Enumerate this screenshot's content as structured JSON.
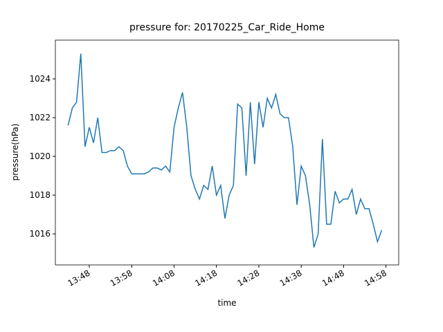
{
  "chart_data": {
    "type": "line",
    "title": "pressure for: 20170225_Car_Ride_Home",
    "x_label": "time",
    "y_label": "pressure(hPa)",
    "x": [
      "13:43",
      "13:44",
      "13:45",
      "13:46",
      "13:47",
      "13:48",
      "13:49",
      "13:50",
      "13:51",
      "13:52",
      "13:53",
      "13:54",
      "13:55",
      "13:56",
      "13:57",
      "13:58",
      "13:59",
      "14:00",
      "14:01",
      "14:02",
      "14:03",
      "14:04",
      "14:05",
      "14:06",
      "14:07",
      "14:08",
      "14:09",
      "14:10",
      "14:11",
      "14:12",
      "14:13",
      "14:14",
      "14:15",
      "14:16",
      "14:17",
      "14:18",
      "14:19",
      "14:20",
      "14:21",
      "14:22",
      "14:23",
      "14:24",
      "14:25",
      "14:26",
      "14:27",
      "14:28",
      "14:29",
      "14:30",
      "14:31",
      "14:32",
      "14:33",
      "14:34",
      "14:35",
      "14:36",
      "14:37",
      "14:38",
      "14:39",
      "14:40",
      "14:41",
      "14:42",
      "14:43",
      "14:44",
      "14:45",
      "14:46",
      "14:47",
      "14:48",
      "14:49",
      "14:50",
      "14:51",
      "14:52",
      "14:53",
      "14:54",
      "14:55",
      "14:56",
      "14:57"
    ],
    "series": [
      {
        "name": "pressure",
        "color": "#1f77b4",
        "values": [
          1021.6,
          1022.5,
          1022.8,
          1025.3,
          1020.5,
          1021.5,
          1020.7,
          1022.0,
          1020.2,
          1020.2,
          1020.3,
          1020.3,
          1020.5,
          1020.3,
          1019.5,
          1019.1,
          1019.1,
          1019.1,
          1019.1,
          1019.2,
          1019.4,
          1019.4,
          1019.3,
          1019.5,
          1019.2,
          1021.5,
          1022.5,
          1023.3,
          1021.5,
          1019.0,
          1018.3,
          1017.8,
          1018.5,
          1018.3,
          1019.5,
          1018.0,
          1018.5,
          1016.8,
          1018.0,
          1018.5,
          1022.7,
          1022.5,
          1019.0,
          1022.8,
          1019.6,
          1022.8,
          1021.5,
          1023.0,
          1022.5,
          1023.2,
          1022.2,
          1022.0,
          1022.0,
          1020.5,
          1017.5,
          1019.5,
          1019.0,
          1017.5,
          1015.3,
          1016.0,
          1020.9,
          1016.5,
          1016.5,
          1018.2,
          1017.6,
          1017.8,
          1017.8,
          1018.3,
          1017.0,
          1017.8,
          1017.3,
          1017.3,
          1016.5,
          1015.6,
          1016.2
        ]
      }
    ],
    "xlim": [
      "13:40",
      "15:01"
    ],
    "xticks": [
      "13:48",
      "13:58",
      "14:08",
      "14:18",
      "14:28",
      "14:38",
      "14:48",
      "14:58"
    ],
    "ylim": [
      1014.4,
      1026.0
    ],
    "yticks": [
      1016,
      1018,
      1020,
      1022,
      1024
    ],
    "grid": false
  }
}
